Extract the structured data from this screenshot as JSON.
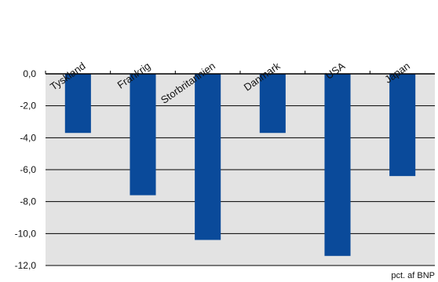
{
  "chart_data": {
    "type": "bar",
    "categories": [
      "Tyskland",
      "Frankrig",
      "Storbritannien",
      "Danmark",
      "USA",
      "Japan"
    ],
    "values": [
      -3.7,
      -7.6,
      -10.4,
      -3.7,
      -11.4,
      -6.4
    ],
    "ylim": [
      -12,
      0
    ],
    "yticks": [
      "0,0",
      "-2,0",
      "-4,0",
      "-6,0",
      "-8,0",
      "-10,0",
      "-12,0"
    ],
    "ytick_values": [
      0,
      -2,
      -4,
      -6,
      -8,
      -10,
      -12
    ],
    "unit_label": "pct. af BNP",
    "grid": true,
    "bar_color": "#0a4a9a",
    "plot_background": "#e3e3e3"
  }
}
